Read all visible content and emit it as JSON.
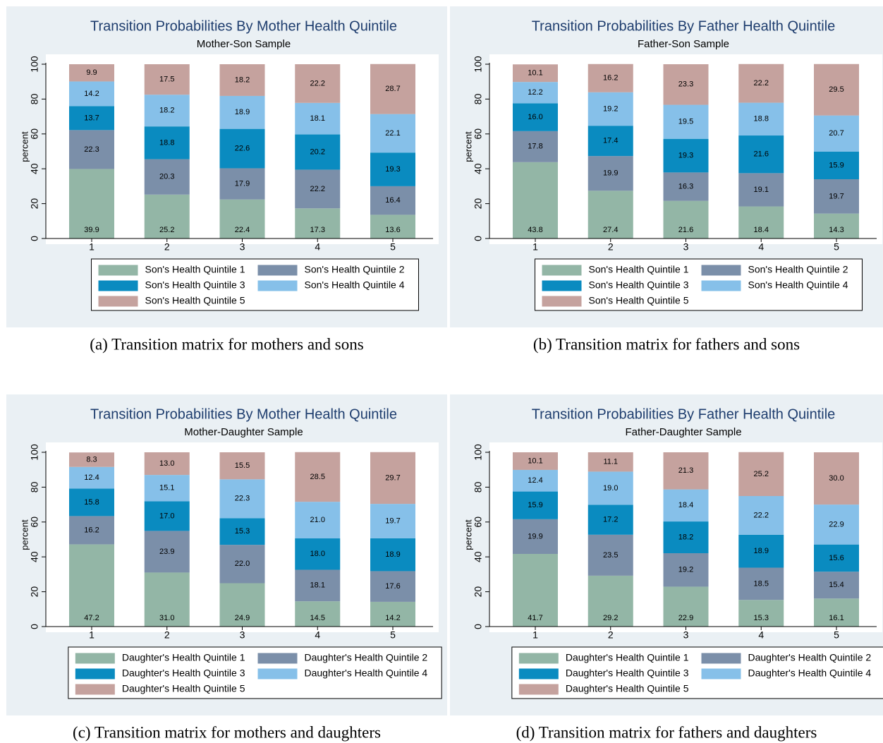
{
  "chart_data": [
    {
      "type": "bar",
      "stacked": true,
      "title": "Transition Probabilities By Mother Health Quintile",
      "subtitle": "Mother-Son Sample",
      "ylabel": "percent",
      "caption": "(a) Transition matrix for mothers and sons",
      "categories": [
        "1",
        "2",
        "3",
        "4",
        "5"
      ],
      "ylim": [
        0,
        100
      ],
      "yticks": [
        0,
        20,
        40,
        60,
        80,
        100
      ],
      "series": [
        {
          "name": "Son's Health Quintile 1",
          "color": "#93b6a6",
          "values": [
            39.9,
            25.2,
            22.4,
            17.3,
            13.6
          ],
          "value_labels": [
            "39.9",
            "25.2",
            "22.4",
            "17.3",
            "13.6"
          ]
        },
        {
          "name": "Son's Health Quintile 2",
          "color": "#7b8fa9",
          "values": [
            22.3,
            20.3,
            17.9,
            22.2,
            16.4
          ],
          "value_labels": [
            "22.3",
            "20.3",
            "17.9",
            "22.2",
            "16.4"
          ]
        },
        {
          "name": "Son's Health Quintile 3",
          "color": "#0a8bc0",
          "values": [
            13.7,
            18.8,
            22.6,
            20.2,
            19.3
          ],
          "value_labels": [
            "13.7",
            "18.8",
            "22.6",
            "20.2",
            "19.3"
          ]
        },
        {
          "name": "Son's Health Quintile 4",
          "color": "#86c0e9",
          "values": [
            14.2,
            18.2,
            18.9,
            18.1,
            22.1
          ],
          "value_labels": [
            "14.2",
            "18.2",
            "18.9",
            "18.1",
            "22.1"
          ]
        },
        {
          "name": "Son's Health Quintile 5",
          "color": "#c5a29e",
          "values": [
            9.9,
            17.5,
            18.2,
            22.2,
            28.7
          ],
          "value_labels": [
            "9.9",
            "17.5",
            "18.2",
            "22.2",
            "28.7"
          ]
        }
      ]
    },
    {
      "type": "bar",
      "stacked": true,
      "title": "Transition Probabilities By Father Health Quintile",
      "subtitle": "Father-Son Sample",
      "ylabel": "percent",
      "caption": "(b) Transition matrix for fathers and sons",
      "categories": [
        "1",
        "2",
        "3",
        "4",
        "5"
      ],
      "ylim": [
        0,
        100
      ],
      "yticks": [
        0,
        20,
        40,
        60,
        80,
        100
      ],
      "series": [
        {
          "name": "Son's Health Quintile 1",
          "color": "#93b6a6",
          "values": [
            43.8,
            27.4,
            21.6,
            18.4,
            14.3
          ],
          "value_labels": [
            "43.8",
            "27.4",
            "21.6",
            "18.4",
            "14.3"
          ]
        },
        {
          "name": "Son's Health Quintile 2",
          "color": "#7b8fa9",
          "values": [
            17.8,
            19.9,
            16.3,
            19.1,
            19.7
          ],
          "value_labels": [
            "17.8",
            "19.9",
            "16.3",
            "19.1",
            "19.7"
          ]
        },
        {
          "name": "Son's Health Quintile 3",
          "color": "#0a8bc0",
          "values": [
            16.0,
            17.4,
            19.3,
            21.6,
            15.9
          ],
          "value_labels": [
            "16.0",
            "17.4",
            "19.3",
            "21.6",
            "15.9"
          ]
        },
        {
          "name": "Son's Health Quintile 4",
          "color": "#86c0e9",
          "values": [
            12.2,
            19.2,
            19.5,
            18.8,
            20.7
          ],
          "value_labels": [
            "12.2",
            "19.2",
            "19.5",
            "18.8",
            "20.7"
          ]
        },
        {
          "name": "Son's Health Quintile 5",
          "color": "#c5a29e",
          "values": [
            10.1,
            16.2,
            23.3,
            22.2,
            29.5
          ],
          "value_labels": [
            "10.1",
            "16.2",
            "23.3",
            "22.2",
            "29.5"
          ]
        }
      ]
    },
    {
      "type": "bar",
      "stacked": true,
      "title": "Transition Probabilities By Mother Health Quintile",
      "subtitle": "Mother-Daughter Sample",
      "ylabel": "percent",
      "caption": "(c) Transition matrix for mothers and daughters",
      "categories": [
        "1",
        "2",
        "3",
        "4",
        "5"
      ],
      "ylim": [
        0,
        100
      ],
      "yticks": [
        0,
        20,
        40,
        60,
        80,
        100
      ],
      "series": [
        {
          "name": "Daughter's Health Quintile 1",
          "color": "#93b6a6",
          "values": [
            47.2,
            31.0,
            24.9,
            14.5,
            14.2
          ],
          "value_labels": [
            "47.2",
            "31.0",
            "24.9",
            "14.5",
            "14.2"
          ]
        },
        {
          "name": "Daughter's Health Quintile 2",
          "color": "#7b8fa9",
          "values": [
            16.2,
            23.9,
            22.0,
            18.1,
            17.6
          ],
          "value_labels": [
            "16.2",
            "23.9",
            "22.0",
            "18.1",
            "17.6"
          ]
        },
        {
          "name": "Daughter's Health Quintile 3",
          "color": "#0a8bc0",
          "values": [
            15.8,
            17.0,
            15.3,
            18.0,
            18.9
          ],
          "value_labels": [
            "15.8",
            "17.0",
            "15.3",
            "18.0",
            "18.9"
          ]
        },
        {
          "name": "Daughter's Health Quintile 4",
          "color": "#86c0e9",
          "values": [
            12.4,
            15.1,
            22.3,
            21.0,
            19.7
          ],
          "value_labels": [
            "12.4",
            "15.1",
            "22.3",
            "21.0",
            "19.7"
          ]
        },
        {
          "name": "Daughter's Health Quintile 5",
          "color": "#c5a29e",
          "values": [
            8.3,
            13.0,
            15.5,
            28.5,
            29.7
          ],
          "value_labels": [
            "8.3",
            "13.0",
            "15.5",
            "28.5",
            "29.7"
          ]
        }
      ]
    },
    {
      "type": "bar",
      "stacked": true,
      "title": "Transition Probabilities By Father Health Quintile",
      "subtitle": "Father-Daughter Sample",
      "ylabel": "percent",
      "caption": "(d) Transition matrix for fathers and daughters",
      "categories": [
        "1",
        "2",
        "3",
        "4",
        "5"
      ],
      "ylim": [
        0,
        100
      ],
      "yticks": [
        0,
        20,
        40,
        60,
        80,
        100
      ],
      "series": [
        {
          "name": "Daughter's Health Quintile 1",
          "color": "#93b6a6",
          "values": [
            41.7,
            29.2,
            22.9,
            15.3,
            16.1
          ],
          "value_labels": [
            "41.7",
            "29.2",
            "22.9",
            "15.3",
            "16.1"
          ]
        },
        {
          "name": "Daughter's Health Quintile 2",
          "color": "#7b8fa9",
          "values": [
            19.9,
            23.5,
            19.2,
            18.5,
            15.4
          ],
          "value_labels": [
            "19.9",
            "23.5",
            "19.2",
            "18.5",
            "15.4"
          ]
        },
        {
          "name": "Daughter's Health Quintile 3",
          "color": "#0a8bc0",
          "values": [
            15.9,
            17.2,
            18.2,
            18.9,
            15.6
          ],
          "value_labels": [
            "15.9",
            "17.2",
            "18.2",
            "18.9",
            "15.6"
          ]
        },
        {
          "name": "Daughter's Health Quintile 4",
          "color": "#86c0e9",
          "values": [
            12.4,
            19.0,
            18.4,
            22.2,
            22.9
          ],
          "value_labels": [
            "12.4",
            "19.0",
            "18.4",
            "22.2",
            "22.9"
          ]
        },
        {
          "name": "Daughter's Health Quintile 5",
          "color": "#c5a29e",
          "values": [
            10.1,
            11.1,
            21.3,
            25.2,
            30.0
          ],
          "value_labels": [
            "10.1",
            "11.1",
            "21.3",
            "25.2",
            "30.0"
          ]
        }
      ]
    }
  ]
}
